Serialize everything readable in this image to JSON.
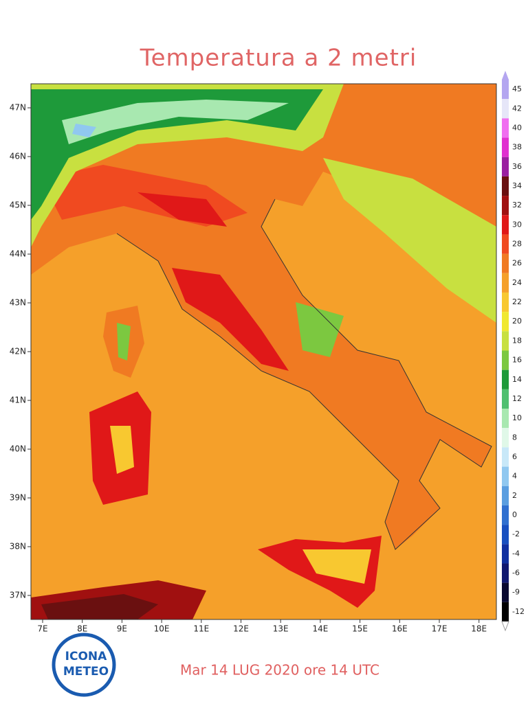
{
  "title": "Temperatura a 2 metri",
  "lat_labels": [
    "47N",
    "46N",
    "45N",
    "44N",
    "43N",
    "42N",
    "41N",
    "40N",
    "39N",
    "38N",
    "37N"
  ],
  "lon_labels": [
    "7E",
    "8E",
    "9E",
    "10E",
    "11E",
    "12E",
    "13E",
    "14E",
    "15E",
    "16E",
    "17E",
    "18E"
  ],
  "colorbar": {
    "labels": [
      "45",
      "42",
      "40",
      "38",
      "36",
      "34",
      "32",
      "30",
      "28",
      "26",
      "24",
      "22",
      "20",
      "18",
      "16",
      "14",
      "12",
      "10",
      "8",
      "6",
      "4",
      "2",
      "0",
      "-2",
      "-4",
      "-6",
      "-9",
      "-12"
    ],
    "colors": [
      "#b4a6f0",
      "#e6e6f8",
      "#f06ef0",
      "#e030d0",
      "#9b1fa0",
      "#6a1010",
      "#a01010",
      "#e01818",
      "#f04a20",
      "#f07a22",
      "#f5a02a",
      "#f8c830",
      "#f0e830",
      "#c8e040",
      "#7cc840",
      "#1e9a3a",
      "#50c070",
      "#a8e8b0",
      "#e0f8e8",
      "#c8e8f8",
      "#90c8f0",
      "#5a9ee0",
      "#3070d0",
      "#1850c0",
      "#1030a0",
      "#101870",
      "#080830",
      "#000000"
    ]
  },
  "logo": {
    "line1": "ICONA",
    "line2": "METEO"
  },
  "footer": "Mar 14 LUG 2020 ore 14 UTC"
}
